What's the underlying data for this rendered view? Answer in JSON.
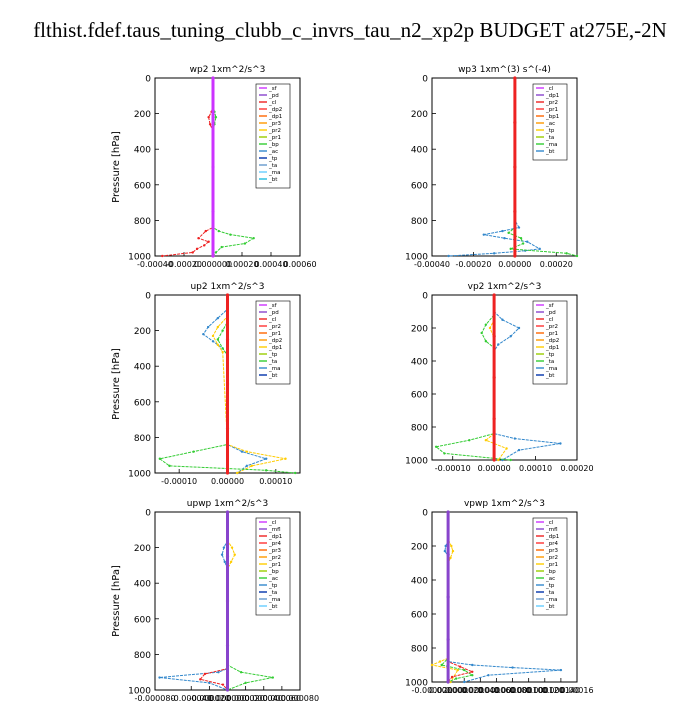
{
  "page": {
    "title": "flthist.fdef.taus_tuning_clubb_c_invrs_tau_n2_xp2p  BUDGET at275E,-2N"
  },
  "chart_data": [
    {
      "type": "line",
      "title": "wp2   1xm^2/s^3",
      "ylabel": "Pressure [hPa]",
      "ylim": [
        1000,
        0
      ],
      "xlim": [
        -0.0004,
        0.0006
      ],
      "grid": false,
      "legend_position": "top-right",
      "yticks": [
        "0",
        "200",
        "400",
        "600",
        "800",
        "1000"
      ],
      "xticks": [
        "-0.00040",
        "-0.00020",
        "0.000000",
        "0.00020",
        "0.00040",
        "0.00060"
      ],
      "legend": [
        "_sf",
        "_pd",
        "_cl",
        "_dp2",
        "_dp1",
        "_pr3",
        "_pr2",
        "_pr1",
        "_bp",
        "_ac",
        "_tp",
        "_ta",
        "_ma",
        "_bt"
      ],
      "series": [
        {
          "name": "_cl",
          "color": "#ee2222",
          "x": [
            0,
            0,
            -1e-05,
            -3e-05,
            -2e-05,
            0,
            0,
            -5e-05,
            -0.0001,
            -3e-05,
            -6e-05,
            -0.00011,
            -0.00014,
            -0.00035
          ],
          "y": [
            0,
            150,
            190,
            220,
            260,
            300,
            840,
            860,
            900,
            920,
            940,
            960,
            980,
            1000
          ]
        },
        {
          "name": "_ac",
          "color": "#33cc33",
          "x": [
            0,
            0,
            1e-05,
            2e-05,
            1e-05,
            0,
            0,
            4e-05,
            0.00012,
            0.00028,
            0.00022,
            6e-05,
            2e-05,
            0
          ],
          "y": [
            0,
            150,
            190,
            220,
            260,
            300,
            840,
            860,
            880,
            900,
            930,
            950,
            980,
            1000
          ]
        },
        {
          "name": "_dp1",
          "color": "#cc33ff",
          "x": [
            0,
            0,
            0,
            0,
            0
          ],
          "y": [
            0,
            250,
            500,
            750,
            1000
          ]
        }
      ]
    },
    {
      "type": "line",
      "title": "wp3   1xm^(3) s^(-4)",
      "ylabel": "",
      "ylim": [
        1000,
        0
      ],
      "xlim": [
        -0.0004,
        0.0003
      ],
      "grid": false,
      "legend_position": "top-right",
      "yticks": [
        "0",
        "200",
        "400",
        "600",
        "800",
        "1000"
      ],
      "xticks": [
        "-0.00040",
        "-0.00020",
        "0.00000",
        "0.00020"
      ],
      "legend": [
        "_cl",
        "_dp1",
        "_pr2",
        "_pr1",
        "_bp1",
        "_ac",
        "_tp",
        "_ta",
        "_ma",
        "_bt"
      ],
      "series": [
        {
          "name": "_tp",
          "color": "#3388cc",
          "x": [
            0,
            0,
            2e-05,
            -6e-05,
            -0.00015,
            -5e-05,
            6e-05,
            0.00012,
            5e-05,
            -0.0001,
            -0.00032
          ],
          "y": [
            0,
            800,
            840,
            860,
            880,
            900,
            920,
            960,
            970,
            985,
            1000
          ]
        },
        {
          "name": "_ac",
          "color": "#33cc33",
          "x": [
            0,
            0,
            -3e-05,
            3e-05,
            4e-05,
            -2e-05,
            0.00025,
            0.0003
          ],
          "y": [
            0,
            840,
            870,
            900,
            930,
            960,
            985,
            1000
          ]
        },
        {
          "name": "_cl",
          "color": "#ee2222",
          "x": [
            0,
            0,
            0,
            0,
            0
          ],
          "y": [
            0,
            250,
            500,
            750,
            1000
          ]
        }
      ]
    },
    {
      "type": "line",
      "title": "up2   1xm^2/s^3",
      "ylabel": "Pressure [hPa]",
      "ylim": [
        1000,
        0
      ],
      "xlim": [
        -0.00015,
        0.00015
      ],
      "grid": false,
      "legend_position": "top-right",
      "yticks": [
        "0",
        "200",
        "400",
        "600",
        "800",
        "1000"
      ],
      "xticks": [
        "-0.00010",
        "0.00000",
        "0.00010"
      ],
      "legend": [
        "_sf",
        "_pd",
        "_cl",
        "_pr2",
        "_pr1",
        "_dp2",
        "_dp1",
        "_tp",
        "_ta",
        "_ma",
        "_bt"
      ],
      "series": [
        {
          "name": "_tp",
          "color": "#3388cc",
          "x": [
            0,
            0,
            -2e-05,
            -4e-05,
            -5e-05,
            -3e-05,
            -1e-05,
            0,
            0,
            3e-05,
            8e-05,
            4e-05,
            2e-05
          ],
          "y": [
            0,
            80,
            130,
            180,
            220,
            260,
            300,
            340,
            840,
            880,
            920,
            960,
            1000
          ]
        },
        {
          "name": "_pr1",
          "color": "#ffcc00",
          "x": [
            0,
            0,
            -2e-05,
            -3e-05,
            -2e-05,
            -1e-05,
            0,
            4e-05,
            0.00012,
            5e-05,
            2e-05
          ],
          "y": [
            0,
            120,
            180,
            230,
            280,
            320,
            840,
            880,
            920,
            960,
            1000
          ]
        },
        {
          "name": "_dp1",
          "color": "#33cc33",
          "x": [
            0,
            0,
            -1e-05,
            -2e-05,
            -1e-05,
            0,
            0,
            -7e-05,
            -0.00014,
            -0.00012,
            8e-05,
            0.00014
          ],
          "y": [
            0,
            150,
            200,
            250,
            300,
            340,
            840,
            880,
            920,
            960,
            985,
            1000
          ]
        },
        {
          "name": "_cl",
          "color": "#ee2222",
          "x": [
            0,
            0,
            0,
            0,
            0
          ],
          "y": [
            0,
            250,
            500,
            750,
            1000
          ]
        }
      ]
    },
    {
      "type": "line",
      "title": "vp2   1xm^2/s^3",
      "ylabel": "",
      "ylim": [
        1000,
        0
      ],
      "xlim": [
        -0.00015,
        0.0002
      ],
      "grid": false,
      "legend_position": "top-right",
      "yticks": [
        "0",
        "200",
        "400",
        "600",
        "800",
        "1000"
      ],
      "xticks": [
        "-0.00010",
        "0.00000",
        "0.00010",
        "0.00020"
      ],
      "legend": [
        "_sf",
        "_pd",
        "_cl",
        "_pr2",
        "_pr1",
        "_dp2",
        "_dp1",
        "_tp",
        "_ta",
        "_ma",
        "_bt"
      ],
      "series": [
        {
          "name": "_tp",
          "color": "#3388cc",
          "x": [
            0,
            0,
            2e-05,
            6e-05,
            4e-05,
            1e-05,
            0,
            0,
            5e-05,
            0.00016,
            6e-05,
            2e-05
          ],
          "y": [
            0,
            100,
            150,
            200,
            250,
            300,
            340,
            840,
            870,
            900,
            940,
            1000
          ]
        },
        {
          "name": "_dp1",
          "color": "#33cc33",
          "x": [
            0,
            0,
            -2e-05,
            -3e-05,
            -2e-05,
            0,
            0,
            -6e-05,
            -0.00014,
            -0.00012,
            4e-05
          ],
          "y": [
            0,
            120,
            180,
            230,
            280,
            320,
            840,
            880,
            920,
            960,
            1000
          ]
        },
        {
          "name": "_pr1",
          "color": "#ffcc00",
          "x": [
            0,
            0,
            -1e-05,
            0,
            0,
            -2e-05,
            3e-05,
            1e-05
          ],
          "y": [
            0,
            150,
            200,
            260,
            840,
            880,
            930,
            1000
          ]
        },
        {
          "name": "_cl",
          "color": "#ee2222",
          "x": [
            0,
            0,
            0,
            0,
            0
          ],
          "y": [
            0,
            250,
            500,
            750,
            1000
          ]
        }
      ]
    },
    {
      "type": "line",
      "title": "upwp   1xm^2/s^3",
      "ylabel": "Pressure [hPa]",
      "ylim": [
        1000,
        0
      ],
      "xlim": [
        -8e-05,
        8e-05
      ],
      "grid": false,
      "legend_position": "top-right",
      "yticks": [
        "0",
        "200",
        "400",
        "600",
        "800",
        "1000"
      ],
      "xticks": [
        "-0.000080",
        "-0.000040",
        "-0.000020",
        "0.000000",
        "0.000020",
        "0.000040",
        "0.000060",
        "0.000080"
      ],
      "legend": [
        "_cl",
        "_mfl",
        "_dp1",
        "_pr4",
        "_pr3",
        "_pr2",
        "_pr1",
        "_bp",
        "_ac",
        "_tp",
        "_ta",
        "_ma",
        "_bt"
      ],
      "series": [
        {
          "name": "_pr1",
          "color": "#ffcc00",
          "x": [
            0,
            0,
            5e-06,
            8e-06,
            4e-06,
            0,
            0
          ],
          "y": [
            0,
            160,
            200,
            240,
            280,
            320,
            1000
          ]
        },
        {
          "name": "_tp",
          "color": "#3388cc",
          "x": [
            0,
            0,
            -4e-06,
            -6e-06,
            -3e-06,
            0,
            0,
            -1e-05,
            -7.5e-05,
            -2e-05,
            0
          ],
          "y": [
            0,
            160,
            200,
            240,
            280,
            320,
            880,
            900,
            930,
            960,
            1000
          ]
        },
        {
          "name": "_ac",
          "color": "#33cc33",
          "x": [
            0,
            0,
            1.5e-05,
            5e-05,
            2e-05,
            0
          ],
          "y": [
            0,
            860,
            900,
            930,
            960,
            1000
          ]
        },
        {
          "name": "_dp1",
          "color": "#ee2222",
          "x": [
            0,
            0,
            -2.5e-05,
            -3e-05,
            -5e-06,
            0
          ],
          "y": [
            0,
            880,
            910,
            940,
            970,
            1000
          ]
        },
        {
          "name": "_cl",
          "color": "#8844cc",
          "x": [
            0,
            0,
            0,
            0,
            0
          ],
          "y": [
            0,
            250,
            500,
            750,
            1000
          ]
        }
      ]
    },
    {
      "type": "line",
      "title": "vpwp   1xm^2/s^3",
      "ylabel": "",
      "ylim": [
        1000,
        0
      ],
      "xlim": [
        -2e-05,
        0.00016
      ],
      "grid": false,
      "legend_position": "top-right",
      "yticks": [
        "0",
        "200",
        "400",
        "600",
        "800",
        "1000"
      ],
      "xticks": [
        "-0.000020",
        "0.000000",
        "0.000020",
        "0.000040",
        "0.000060",
        "0.000080",
        "0.000100",
        "0.000120",
        "0.000140",
        "0.00016"
      ],
      "legend": [
        "_cl",
        "_mfl",
        "_dp1",
        "_pr4",
        "_pr3",
        "_pr2",
        "_pr1",
        "_bp",
        "_ac",
        "_tp",
        "_ta",
        "_ma",
        "_bt"
      ],
      "series": [
        {
          "name": "_pr1",
          "color": "#ffcc00",
          "x": [
            0,
            0,
            4e-06,
            6e-06,
            3e-06,
            0,
            0,
            -1e-05,
            -2e-05,
            1.2e-05,
            3e-06
          ],
          "y": [
            0,
            160,
            200,
            230,
            270,
            300,
            860,
            880,
            900,
            930,
            1000
          ]
        },
        {
          "name": "_tp",
          "color": "#3388cc",
          "x": [
            0,
            0,
            -3e-06,
            -4e-06,
            0,
            0,
            3e-05,
            8e-05,
            0.00014,
            5e-05,
            2e-05
          ],
          "y": [
            0,
            170,
            200,
            230,
            260,
            880,
            900,
            915,
            930,
            960,
            1000
          ]
        },
        {
          "name": "_ac",
          "color": "#33cc33",
          "x": [
            0,
            0,
            -8e-06,
            2e-05,
            3e-05,
            1e-05,
            0
          ],
          "y": [
            0,
            860,
            900,
            930,
            960,
            980,
            1000
          ]
        },
        {
          "name": "_dp1",
          "color": "#ee2222",
          "x": [
            0,
            0,
            1.5e-05,
            3e-05,
            5e-06,
            0
          ],
          "y": [
            0,
            880,
            910,
            940,
            970,
            1000
          ]
        },
        {
          "name": "_cl",
          "color": "#8844cc",
          "x": [
            0,
            0,
            0,
            0,
            0
          ],
          "y": [
            0,
            250,
            500,
            750,
            1000
          ]
        }
      ]
    }
  ]
}
